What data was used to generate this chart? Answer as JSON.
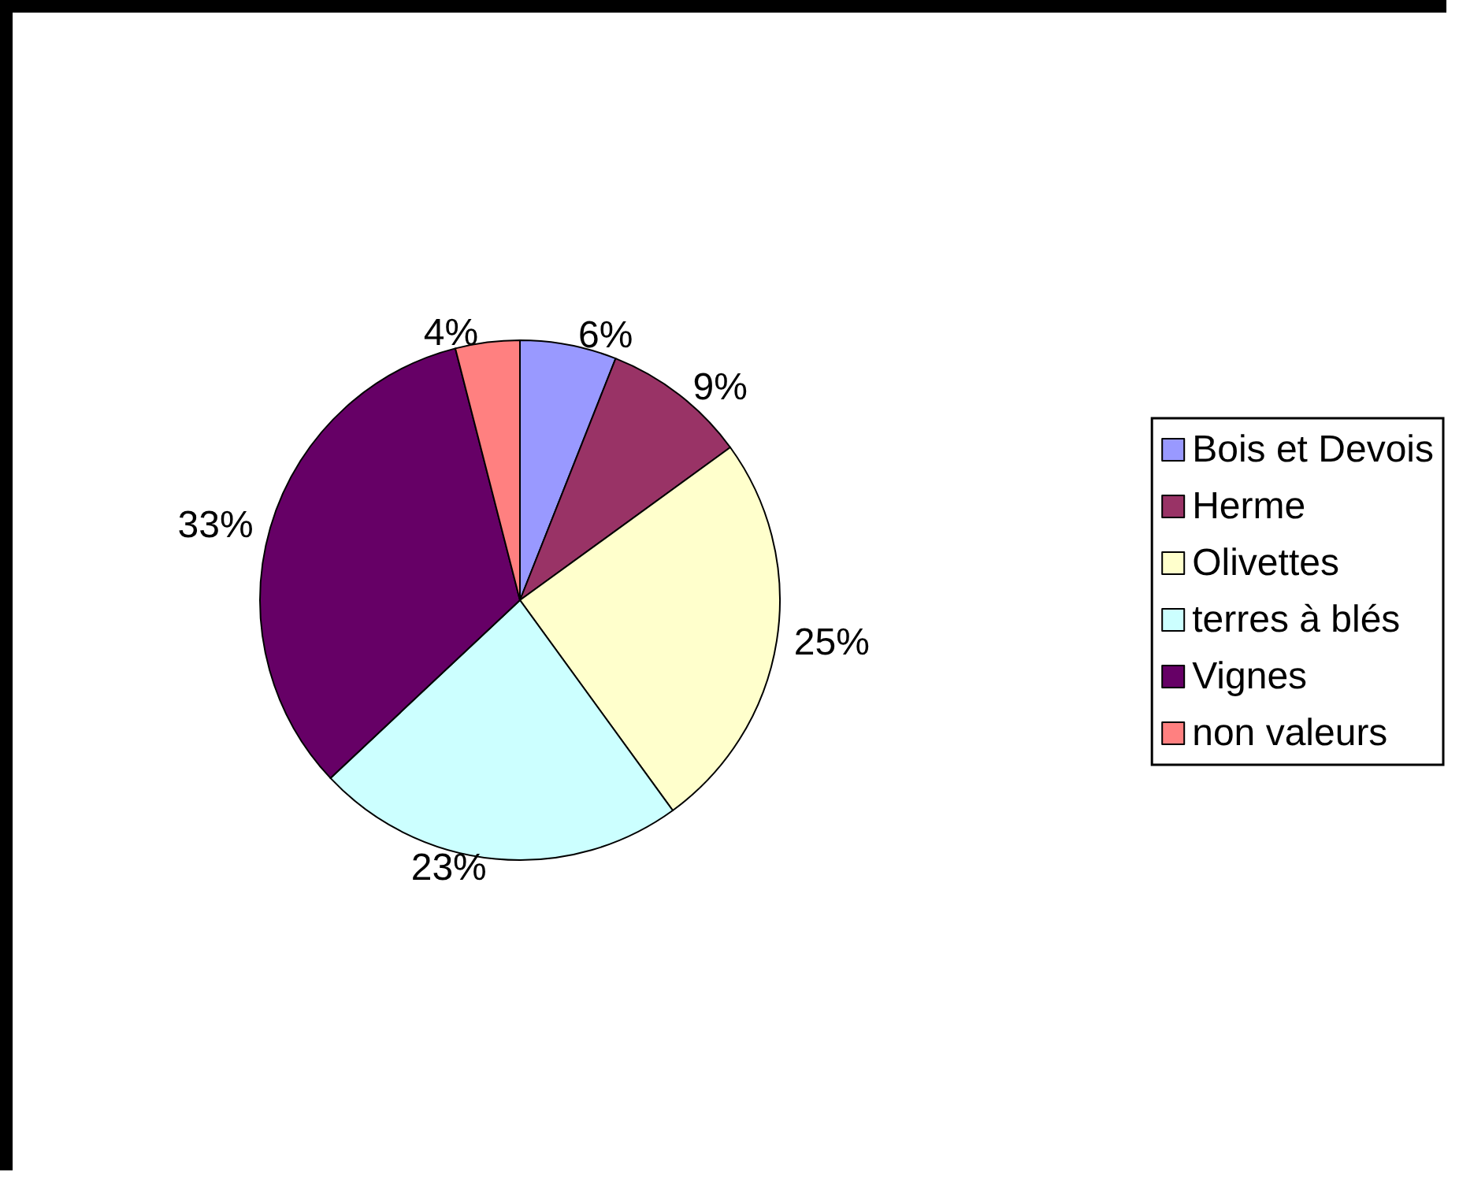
{
  "chart_data": {
    "type": "pie",
    "categories": [
      "Bois et Devois",
      "Herme",
      "Olivettes",
      "terres à blés",
      "Vignes",
      "non valeurs"
    ],
    "values": [
      6,
      9,
      25,
      23,
      33,
      4
    ],
    "value_labels": [
      "6%",
      "9%",
      "25%",
      "23%",
      "33%",
      "4%"
    ],
    "colors": [
      "#9999ff",
      "#993366",
      "#ffffcc",
      "#ccffff",
      "#660066",
      "#ff8080"
    ],
    "legend": "right"
  }
}
